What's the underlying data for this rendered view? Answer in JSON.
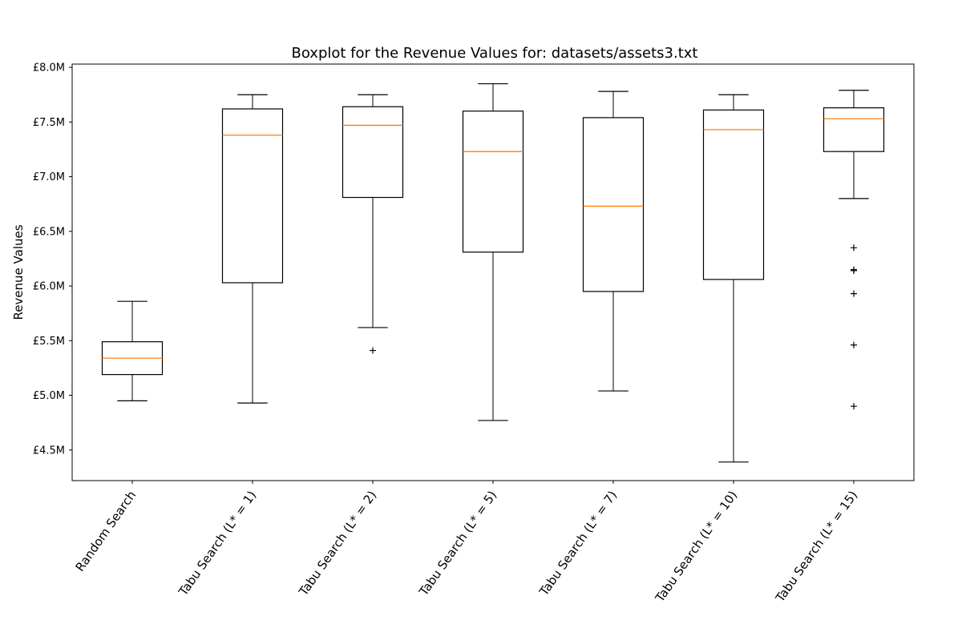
{
  "chart_data": {
    "type": "boxplot",
    "title": "Boxplot for the Revenue Values for: datasets/assets3.txt",
    "xlabel": "",
    "ylabel": "Revenue Values",
    "ylim": [
      4.22,
      8.03
    ],
    "yticks": [
      {
        "value": 4.5,
        "label": "£4.5M"
      },
      {
        "value": 5.0,
        "label": "£5.0M"
      },
      {
        "value": 5.5,
        "label": "£5.5M"
      },
      {
        "value": 6.0,
        "label": "£6.0M"
      },
      {
        "value": 6.5,
        "label": "£6.5M"
      },
      {
        "value": 7.0,
        "label": "£7.0M"
      },
      {
        "value": 7.5,
        "label": "£7.5M"
      },
      {
        "value": 8.0,
        "label": "£8.0M"
      }
    ],
    "grid": false,
    "colors": {
      "box": "#000000",
      "median": "#ff7f0e",
      "flier": "#000000"
    },
    "categories": [
      "Random Search",
      "Tabu Search (L* = 1)",
      "Tabu Search (L* = 2)",
      "Tabu Search (L* = 5)",
      "Tabu Search (L* = 7)",
      "Tabu Search (L* = 10)",
      "Tabu Search (L* = 15)"
    ],
    "boxes": [
      {
        "whisker_low": 4.95,
        "q1": 5.19,
        "median": 5.34,
        "q3": 5.49,
        "whisker_high": 5.86,
        "outliers": []
      },
      {
        "whisker_low": 4.93,
        "q1": 6.03,
        "median": 7.38,
        "q3": 7.62,
        "whisker_high": 7.75,
        "outliers": []
      },
      {
        "whisker_low": 5.62,
        "q1": 6.81,
        "median": 7.47,
        "q3": 7.64,
        "whisker_high": 7.75,
        "outliers": [
          5.41
        ]
      },
      {
        "whisker_low": 4.77,
        "q1": 6.31,
        "median": 7.23,
        "q3": 7.6,
        "whisker_high": 7.85,
        "outliers": []
      },
      {
        "whisker_low": 5.04,
        "q1": 5.95,
        "median": 6.73,
        "q3": 7.54,
        "whisker_high": 7.78,
        "outliers": []
      },
      {
        "whisker_low": 4.39,
        "q1": 6.06,
        "median": 7.43,
        "q3": 7.61,
        "whisker_high": 7.75,
        "outliers": []
      },
      {
        "whisker_low": 6.8,
        "q1": 7.23,
        "median": 7.53,
        "q3": 7.63,
        "whisker_high": 7.79,
        "outliers": [
          6.35,
          6.15,
          6.14,
          5.93,
          5.46,
          4.9
        ]
      }
    ]
  }
}
